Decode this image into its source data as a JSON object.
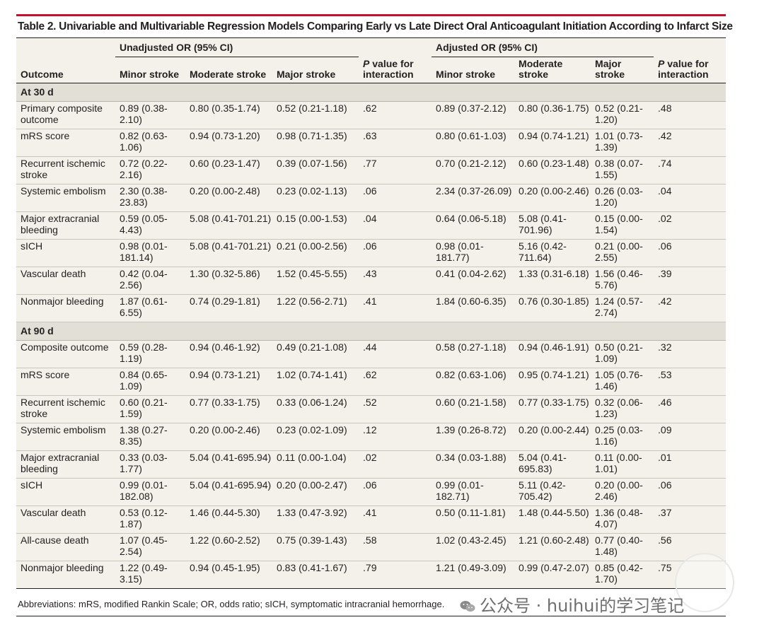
{
  "title": "Table 2. Univariable and Multivariable Regression Models Comparing Early vs Late Direct Oral Anticoagulant Initiation According to Infarct Size",
  "header": {
    "unadjusted": "Unadjusted OR (95% CI)",
    "adjusted": "Adjusted OR (95% CI)",
    "outcome": "Outcome",
    "minor": "Minor stroke",
    "moderate": "Moderate stroke",
    "moderate_wrapped": "Moderate stroke",
    "major": "Major stroke",
    "pvalue": "P value for interaction",
    "pvalue_p": "P",
    "pvalue_rest1": "value for",
    "pvalue_rest2": "interaction"
  },
  "sections": [
    {
      "label": "At 30 d",
      "rows": [
        {
          "outcome": "Primary composite outcome",
          "u_minor": "0.89 (0.38-2.10)",
          "u_mod": "0.80 (0.35-1.74)",
          "u_major": "0.52 (0.21-1.18)",
          "u_p": ".62",
          "a_minor": "0.89 (0.37-2.12)",
          "a_mod": "0.80 (0.36-1.75)",
          "a_major": "0.52 (0.21-1.20)",
          "a_p": ".48"
        },
        {
          "outcome": "mRS score",
          "u_minor": "0.82 (0.63-1.06)",
          "u_mod": "0.94 (0.73-1.20)",
          "u_major": "0.98 (0.71-1.35)",
          "u_p": ".63",
          "a_minor": "0.80 (0.61-1.03)",
          "a_mod": "0.94 (0.74-1.21)",
          "a_major": "1.01 (0.73-1.39)",
          "a_p": ".42"
        },
        {
          "outcome": "Recurrent ischemic stroke",
          "u_minor": "0.72 (0.22-2.16)",
          "u_mod": "0.60 (0.23-1.47)",
          "u_major": "0.39 (0.07-1.56)",
          "u_p": ".77",
          "a_minor": "0.70 (0.21-2.12)",
          "a_mod": "0.60 (0.23-1.48)",
          "a_major": "0.38 (0.07-1.55)",
          "a_p": ".74"
        },
        {
          "outcome": "Systemic embolism",
          "u_minor": "2.30 (0.38-23.83)",
          "u_mod": "0.20 (0.00-2.48)",
          "u_major": "0.23 (0.02-1.13)",
          "u_p": ".06",
          "a_minor": "2.34 (0.37-26.09)",
          "a_mod": "0.20 (0.00-2.46)",
          "a_major": "0.26 (0.03-1.20)",
          "a_p": ".04"
        },
        {
          "outcome": "Major extracranial bleeding",
          "u_minor": "0.59 (0.05-4.43)",
          "u_mod": "5.08 (0.41-701.21)",
          "u_major": "0.15 (0.00-1.53)",
          "u_p": ".04",
          "a_minor": "0.64 (0.06-5.18)",
          "a_mod": "5.08 (0.41-701.96)",
          "a_major": "0.15 (0.00-1.54)",
          "a_p": ".02"
        },
        {
          "outcome": "sICH",
          "u_minor": "0.98 (0.01-181.14)",
          "u_mod": "5.08 (0.41-701.21)",
          "u_major": "0.21 (0.00-2.56)",
          "u_p": ".06",
          "a_minor": "0.98 (0.01-181.77)",
          "a_mod": "5.16 (0.42-711.64)",
          "a_major": "0.21 (0.00-2.55)",
          "a_p": ".06"
        },
        {
          "outcome": "Vascular death",
          "u_minor": "0.42 (0.04-2.56)",
          "u_mod": "1.30 (0.32-5.86)",
          "u_major": "1.52 (0.45-5.55)",
          "u_p": ".43",
          "a_minor": "0.41 (0.04-2.62)",
          "a_mod": "1.33 (0.31-6.18)",
          "a_major": "1.56 (0.46-5.76)",
          "a_p": ".39"
        },
        {
          "outcome": "Nonmajor bleeding",
          "u_minor": "1.87 (0.61-6.55)",
          "u_mod": "0.74 (0.29-1.81)",
          "u_major": "1.22 (0.56-2.71)",
          "u_p": ".41",
          "a_minor": "1.84 (0.60-6.35)",
          "a_mod": "0.76 (0.30-1.85)",
          "a_major": "1.24 (0.57-2.74)",
          "a_p": ".42"
        }
      ]
    },
    {
      "label": "At 90 d",
      "rows": [
        {
          "outcome": "Composite outcome",
          "u_minor": "0.59 (0.28-1.19)",
          "u_mod": "0.94 (0.46-1.92)",
          "u_major": "0.49 (0.21-1.08)",
          "u_p": ".44",
          "a_minor": "0.58 (0.27-1.18)",
          "a_mod": "0.94 (0.46-1.91)",
          "a_major": "0.50 (0.21-1.09)",
          "a_p": ".32"
        },
        {
          "outcome": "mRS score",
          "u_minor": "0.84 (0.65-1.09)",
          "u_mod": "0.94 (0.73-1.21)",
          "u_major": "1.02 (0.74-1.41)",
          "u_p": ".62",
          "a_minor": "0.82 (0.63-1.06)",
          "a_mod": "0.95 (0.74-1.21)",
          "a_major": "1.05 (0.76-1.46)",
          "a_p": ".53"
        },
        {
          "outcome": "Recurrent ischemic stroke",
          "u_minor": "0.60 (0.21-1.59)",
          "u_mod": "0.77 (0.33-1.75)",
          "u_major": "0.33 (0.06-1.24)",
          "u_p": ".52",
          "a_minor": "0.60 (0.21-1.58)",
          "a_mod": "0.77 (0.33-1.75)",
          "a_major": "0.32 (0.06-1.23)",
          "a_p": ".46"
        },
        {
          "outcome": "Systemic embolism",
          "u_minor": "1.38 (0.27-8.35)",
          "u_mod": "0.20 (0.00-2.46)",
          "u_major": "0.23 (0.02-1.09)",
          "u_p": ".12",
          "a_minor": "1.39 (0.26-8.72)",
          "a_mod": "0.20 (0.00-2.44)",
          "a_major": "0.25 (0.03-1.16)",
          "a_p": ".09"
        },
        {
          "outcome": "Major extracranial bleeding",
          "u_minor": "0.33 (0.03-1.77)",
          "u_mod": "5.04 (0.41-695.94)",
          "u_major": "0.11 (0.00-1.04)",
          "u_p": ".02",
          "a_minor": "0.34 (0.03-1.88)",
          "a_mod": "5.04 (0.41-695.83)",
          "a_major": "0.11 (0.00-1.01)",
          "a_p": ".01"
        },
        {
          "outcome": "sICH",
          "u_minor": "0.99 (0.01-182.08)",
          "u_mod": "5.04 (0.41-695.94)",
          "u_major": "0.20 (0.00-2.47)",
          "u_p": ".06",
          "a_minor": "0.99 (0.01-182.71)",
          "a_mod": "5.11 (0.42-705.42)",
          "a_major": "0.20 (0.00-2.46)",
          "a_p": ".06"
        },
        {
          "outcome": "Vascular death",
          "u_minor": "0.53 (0.12-1.87)",
          "u_mod": "1.46 (0.44-5.30)",
          "u_major": "1.33 (0.47-3.92)",
          "u_p": ".41",
          "a_minor": "0.50 (0.11-1.81)",
          "a_mod": "1.48 (0.44-5.50)",
          "a_major": "1.36 (0.48-4.07)",
          "a_p": ".37"
        },
        {
          "outcome": "All-cause death",
          "u_minor": "1.07 (0.45-2.54)",
          "u_mod": "1.22 (0.60-2.52)",
          "u_major": "0.75 (0.39-1.43)",
          "u_p": ".58",
          "a_minor": "1.02 (0.43-2.45)",
          "a_mod": "1.21 (0.60-2.48)",
          "a_major": "0.77 (0.40-1.48)",
          "a_p": ".56"
        },
        {
          "outcome": "Nonmajor bleeding",
          "u_minor": "1.22 (0.49-3.15)",
          "u_mod": "0.94 (0.45-1.95)",
          "u_major": "0.83 (0.41-1.67)",
          "u_p": ".79",
          "a_minor": "1.21 (0.49-3.09)",
          "a_mod": "0.99 (0.47-2.07)",
          "a_major": "0.85 (0.42-1.70)",
          "a_p": ".75"
        }
      ]
    }
  ],
  "footnote": "Abbreviations: mRS, modified Rankin Scale; OR, odds ratio; sICH, symptomatic intracranial hemorrhage.",
  "watermark": "公众号 · huihui的学习笔记",
  "colors": {
    "accent_bar": "#c8102e",
    "table_bg": "#f3f1ea",
    "section_bg": "#e2dfd6"
  },
  "icons": {
    "watermark": "wechat-icon"
  }
}
